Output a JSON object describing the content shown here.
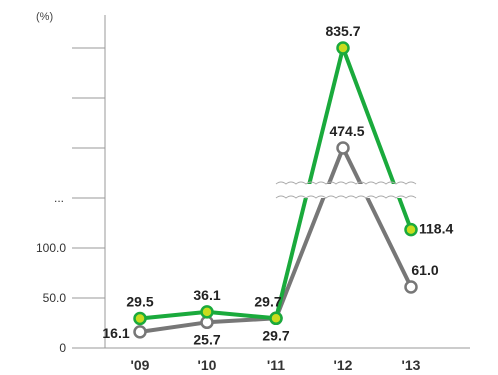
{
  "chart_data": {
    "type": "line",
    "unit_label": "(%)",
    "categories": [
      "'09",
      "'10",
      "'11",
      "'12",
      "'13"
    ],
    "y_ticks": [
      {
        "value": 0,
        "label": "0"
      },
      {
        "value": 50,
        "label": "50.0"
      },
      {
        "value": 100,
        "label": "100.0"
      }
    ],
    "axis_break_label": "...",
    "ylim": [
      0,
      835.7
    ],
    "scale": "broken",
    "series": [
      {
        "key": "green",
        "color": "#1aaa3c",
        "marker_fill": "#c8dc1e",
        "values": [
          29.5,
          36.1,
          29.7,
          835.7,
          118.4
        ],
        "labels": [
          "29.5",
          "36.1",
          "29.7",
          "835.7",
          "118.4"
        ]
      },
      {
        "key": "gray",
        "color": "#777777",
        "marker_fill": "#ffffff",
        "values": [
          16.1,
          25.7,
          29.7,
          474.5,
          61.0
        ],
        "labels": [
          "16.1",
          "25.7",
          "29.7",
          "474.5",
          "61.0"
        ]
      }
    ],
    "grid": false
  }
}
